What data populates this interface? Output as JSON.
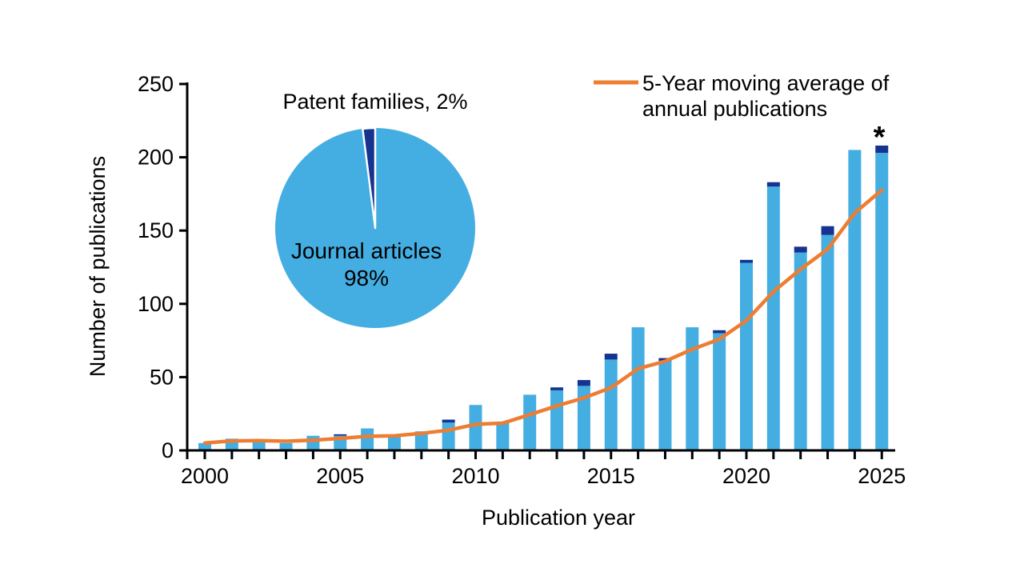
{
  "figure": {
    "background": "#ffffff",
    "axis_color": "#000000",
    "colors": {
      "journal_bar": "#44AEE2",
      "patent_bar": "#15338F",
      "moving_average_line": "#ED7D31"
    }
  },
  "chart_data": [
    {
      "type": "bar",
      "stacked": true,
      "x": [
        2000,
        2001,
        2002,
        2003,
        2004,
        2005,
        2006,
        2007,
        2008,
        2009,
        2010,
        2011,
        2012,
        2013,
        2014,
        2015,
        2016,
        2017,
        2018,
        2019,
        2020,
        2021,
        2022,
        2023,
        2024,
        2025
      ],
      "series": [
        {
          "name": "Journal articles",
          "type": "bar",
          "color": "#44AEE2",
          "values": [
            5,
            8,
            7,
            5,
            10,
            10,
            15,
            9,
            13,
            19,
            31,
            19,
            38,
            41,
            44,
            62,
            84,
            61,
            84,
            80,
            128,
            180,
            135,
            147,
            205,
            203
          ]
        },
        {
          "name": "Patent families",
          "type": "bar",
          "color": "#15338F",
          "values": [
            0,
            0,
            0,
            0,
            0,
            1,
            0,
            0,
            0,
            2,
            0,
            0,
            0,
            2,
            4,
            4,
            0,
            2,
            0,
            2,
            2,
            3,
            4,
            6,
            0,
            5
          ]
        },
        {
          "name": "5-Year moving average of annual publications",
          "type": "line",
          "color": "#ED7D31",
          "values": [
            5.0,
            6.5,
            6.7,
            6.3,
            7.0,
            8.2,
            9.6,
            10.0,
            11.6,
            13.8,
            17.8,
            18.6,
            24.4,
            30.4,
            35.8,
            42.8,
            55.8,
            60.8,
            69.0,
            75.8,
            88.6,
            108.4,
            123.6,
            137.4,
            162.0,
            177.6
          ]
        }
      ],
      "xlabel": "Publication year",
      "ylabel": "Number of publications",
      "ylim": [
        0,
        250
      ],
      "yticks": [
        0,
        50,
        100,
        150,
        200,
        250
      ],
      "xticks": [
        2000,
        2005,
        2010,
        2015,
        2020,
        2025
      ],
      "grid": false,
      "legend_position": "top-right",
      "legend_lines": [
        "5-Year moving average of",
        "annual publications"
      ],
      "annotations": [
        {
          "text": "*",
          "x": 2025,
          "y": 215
        }
      ]
    },
    {
      "type": "pie",
      "labels": [
        "Journal articles",
        "Patent families"
      ],
      "values": [
        98,
        2
      ],
      "colors": [
        "#44AEE2",
        "#15338F"
      ],
      "captions": {
        "patent": "Patent families, 2%",
        "journal_title": "Journal articles",
        "journal_pct": "98%"
      },
      "legend_position": "none",
      "inset": "upper-left of bar chart"
    }
  ]
}
